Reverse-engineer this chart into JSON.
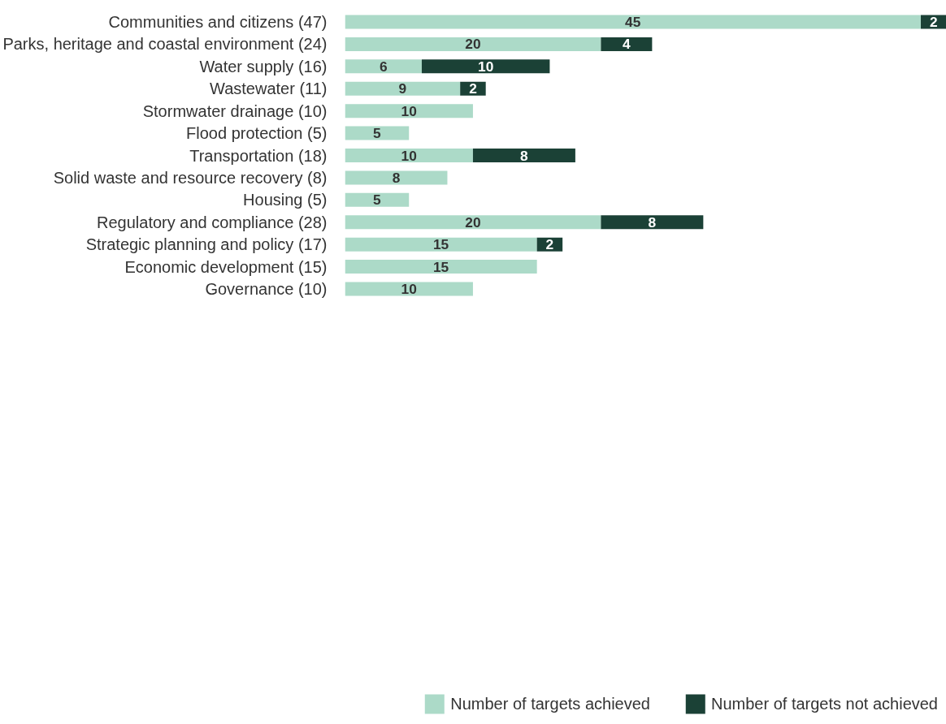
{
  "chart_data": {
    "type": "bar",
    "orientation": "horizontal",
    "stacked": true,
    "data_labels": true,
    "legend": "bottom right",
    "grid": false,
    "categories": [
      "Communities and citizens (47)",
      "Parks, heritage and coastal environment (24)",
      "Water supply (16)",
      "Wastewater (11)",
      "Stormwater drainage (10)",
      "Flood protection (5)",
      "Transportation (18)",
      "Solid waste and resource recovery (8)",
      "Housing (5)",
      "Regulatory and compliance (28)",
      "Strategic planning and policy (17)",
      "Economic development (15)",
      "Governance (10)"
    ],
    "series": [
      {
        "name": "Number of targets achieved",
        "color": "#acdac8",
        "values": [
          45,
          20,
          6,
          9,
          10,
          5,
          10,
          8,
          5,
          20,
          15,
          15,
          10
        ]
      },
      {
        "name": "Number of targets not achieved",
        "color": "#1b4136",
        "values": [
          2,
          4,
          10,
          2,
          null,
          null,
          8,
          null,
          null,
          8,
          2,
          null,
          null
        ]
      }
    ]
  }
}
